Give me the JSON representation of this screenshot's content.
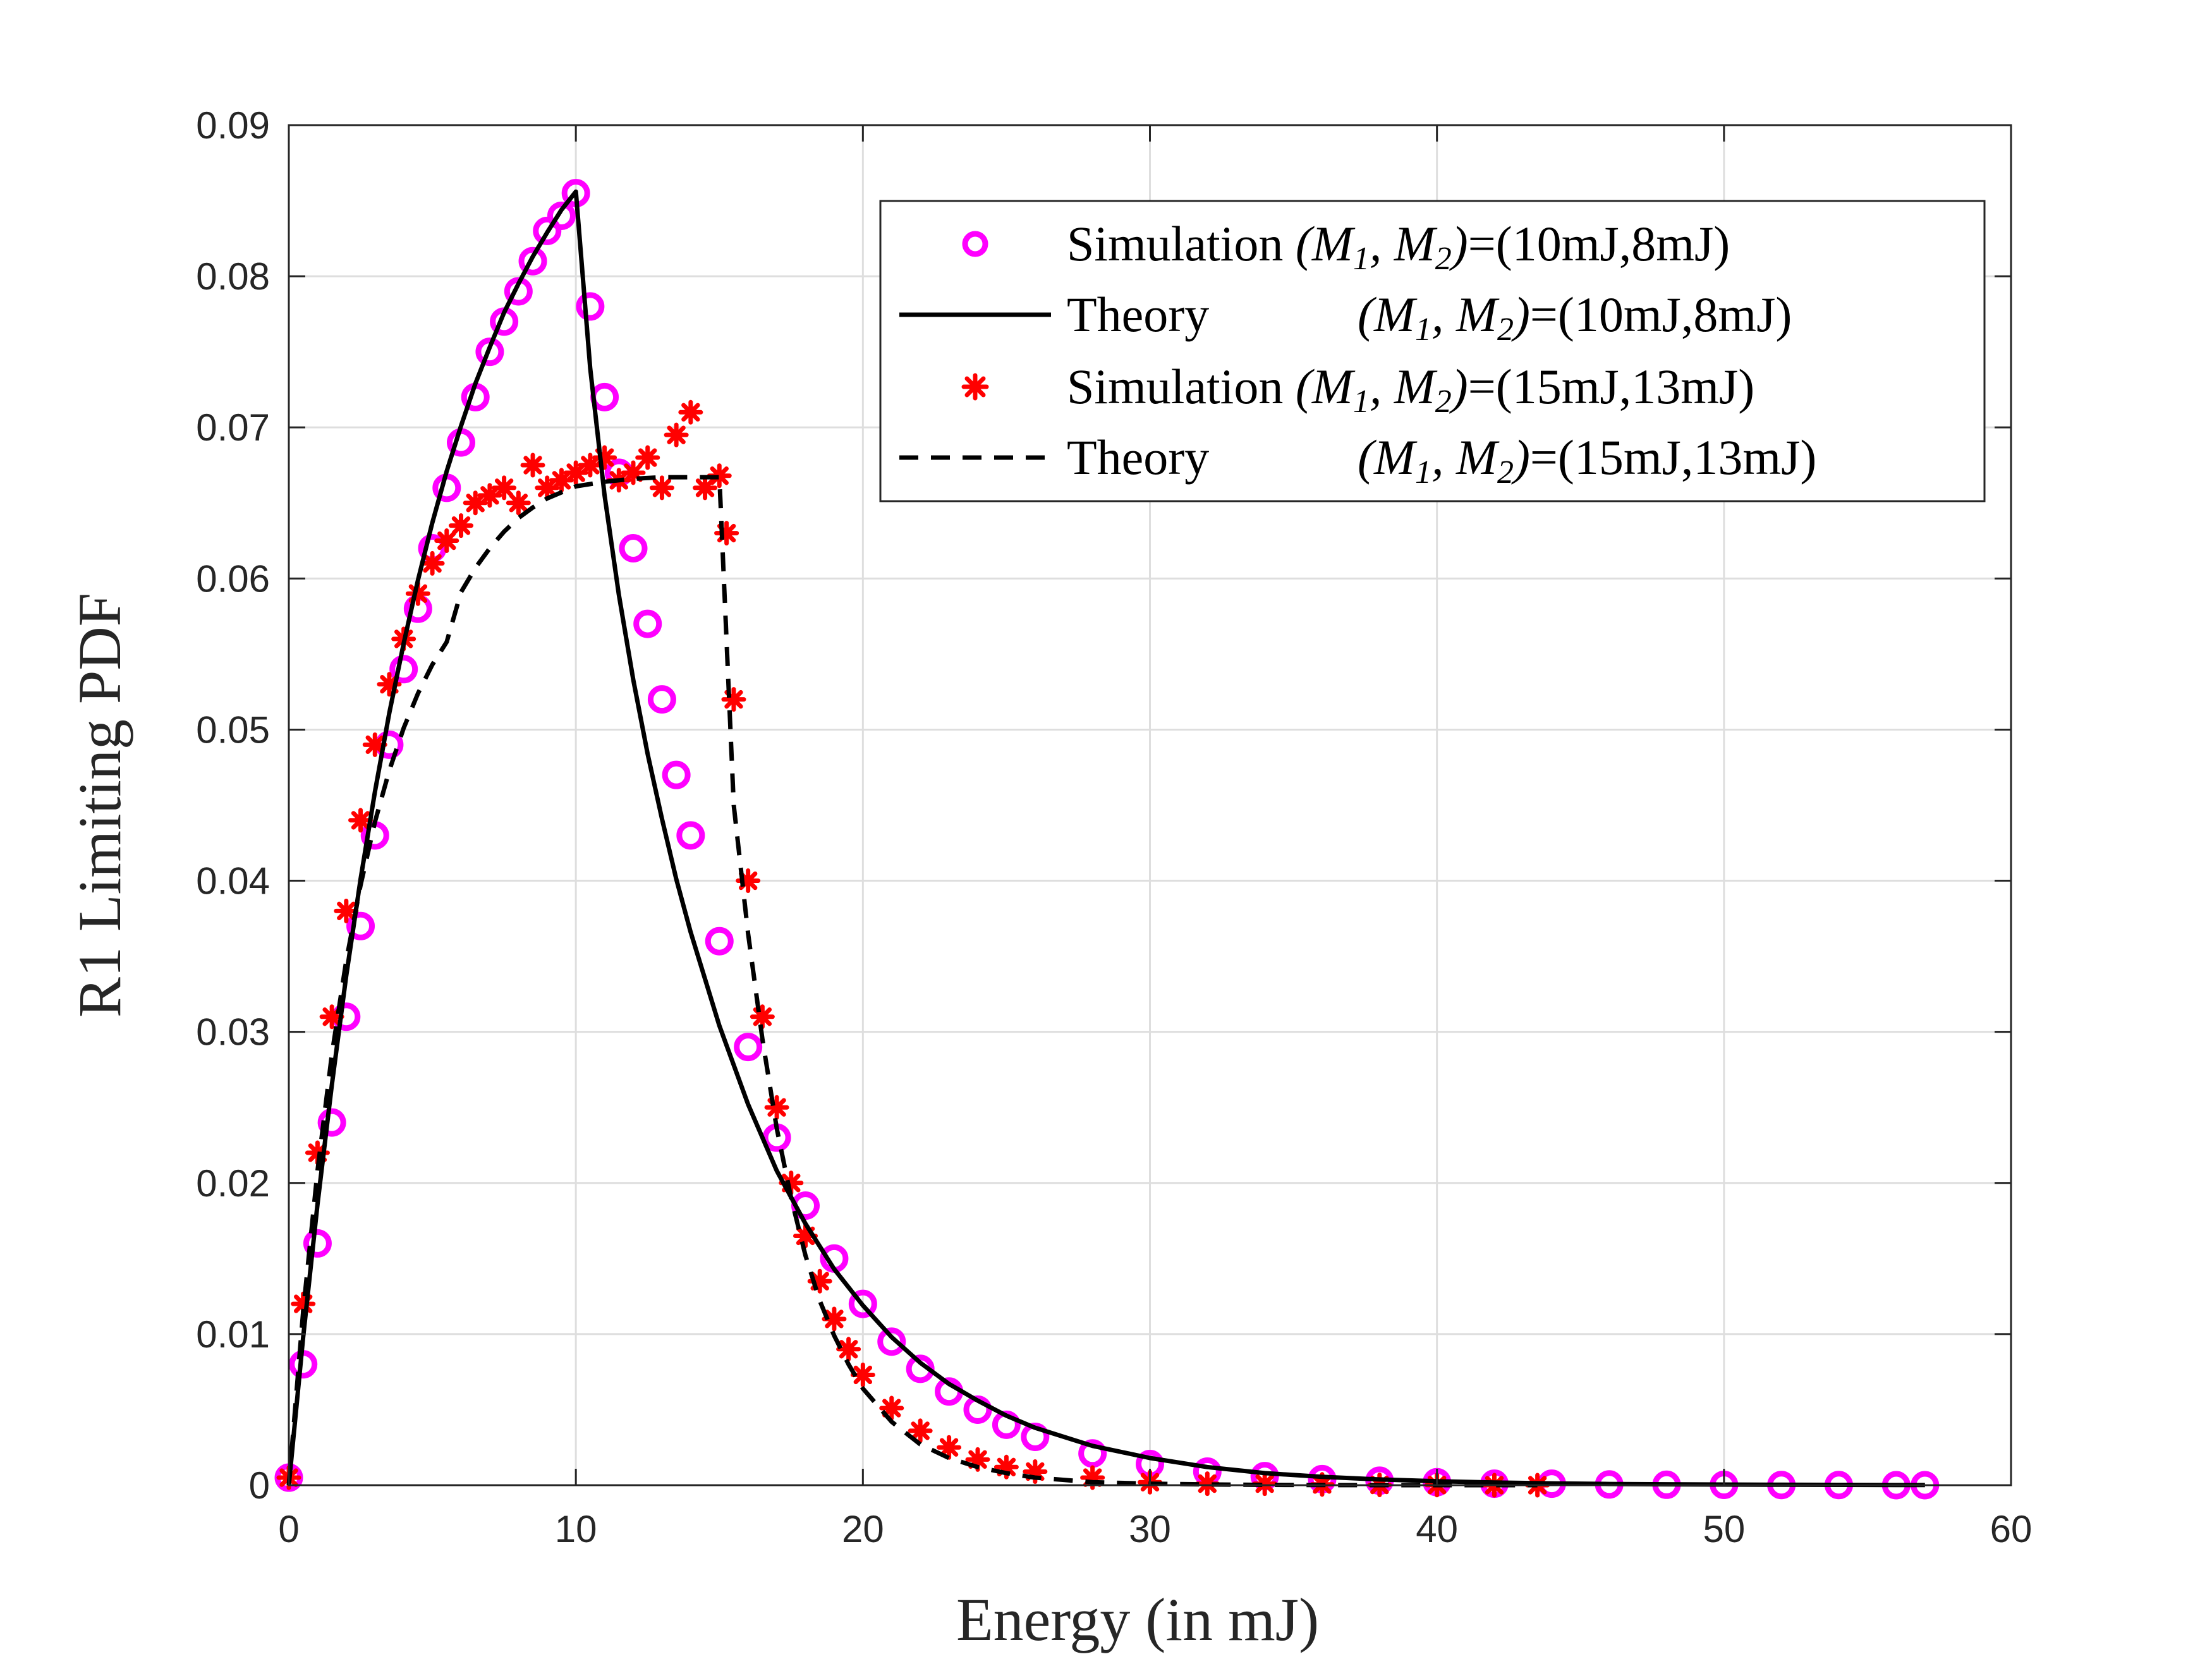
{
  "chart_data": {
    "type": "line",
    "title": "",
    "xlabel": "Energy   (in mJ)",
    "ylabel": "R1 Limiting PDF",
    "xlim": [
      0,
      60
    ],
    "ylim": [
      0,
      0.09
    ],
    "xticks": [
      0,
      10,
      20,
      30,
      40,
      50,
      60
    ],
    "xtick_labels": [
      "0",
      "10",
      "20",
      "30",
      "40",
      "50",
      "60"
    ],
    "yticks": [
      0,
      0.01,
      0.02,
      0.03,
      0.04,
      0.05,
      0.06,
      0.07,
      0.08,
      0.09
    ],
    "ytick_labels": [
      "0",
      "0.01",
      "0.02",
      "0.03",
      "0.04",
      "0.05",
      "0.06",
      "0.07",
      "0.08",
      "0.09"
    ],
    "grid": true,
    "legend_position": "top-right",
    "series": [
      {
        "name": "Simulation (M1, M2)=(10mJ,8mJ)",
        "legend_prefix": "Simulation ",
        "legend_params": "=(10mJ,8mJ)",
        "style": "markers-circle",
        "color": "#ff00ff",
        "x": [
          0,
          0.5,
          1,
          1.5,
          2,
          2.5,
          3,
          3.5,
          4,
          4.5,
          5,
          5.5,
          6,
          6.5,
          7,
          7.5,
          8,
          8.5,
          9,
          9.5,
          10,
          10.5,
          11,
          11.5,
          12,
          12.5,
          13,
          13.5,
          14,
          15,
          16,
          17,
          18,
          19,
          20,
          21,
          22,
          23,
          24,
          25,
          26,
          28,
          30,
          32,
          34,
          36,
          38,
          40,
          42,
          44,
          46,
          48,
          50,
          52,
          54,
          56,
          57
        ],
        "y": [
          0.0005,
          0.008,
          0.016,
          0.024,
          0.031,
          0.037,
          0.043,
          0.049,
          0.054,
          0.058,
          0.062,
          0.066,
          0.069,
          0.072,
          0.075,
          0.077,
          0.079,
          0.081,
          0.083,
          0.084,
          0.0855,
          0.078,
          0.072,
          0.067,
          0.062,
          0.057,
          0.052,
          0.047,
          0.043,
          0.036,
          0.029,
          0.023,
          0.0185,
          0.015,
          0.012,
          0.0095,
          0.0077,
          0.0062,
          0.005,
          0.004,
          0.0032,
          0.0021,
          0.0014,
          0.0009,
          0.0006,
          0.0004,
          0.0003,
          0.0002,
          0.0001,
          0.0001,
          5e-05,
          3e-05,
          2e-05,
          1e-05,
          1e-05,
          0.0,
          0.0
        ]
      },
      {
        "name": "Theory (M1, M2)=(10mJ,8mJ)",
        "legend_prefix": "Theory",
        "legend_params": "=(10mJ,8mJ)",
        "style": "solid",
        "color": "#000000",
        "x": [
          0,
          0.5,
          1,
          1.5,
          2,
          2.5,
          3,
          3.5,
          4,
          4.5,
          5,
          5.5,
          6,
          6.5,
          7,
          7.5,
          8,
          8.5,
          9,
          9.5,
          10,
          10.5,
          11,
          11.5,
          12,
          12.5,
          13,
          13.5,
          14,
          15,
          16,
          17,
          18,
          19,
          20,
          21,
          22,
          23,
          24,
          25,
          26,
          28,
          30,
          32,
          34,
          36,
          38,
          40,
          42,
          44,
          46,
          48,
          50,
          52,
          54,
          56,
          57
        ],
        "y": [
          0.0,
          0.0098,
          0.0186,
          0.0265,
          0.0337,
          0.0401,
          0.0459,
          0.0511,
          0.0557,
          0.0599,
          0.0637,
          0.0671,
          0.0701,
          0.0729,
          0.0753,
          0.0776,
          0.0795,
          0.0813,
          0.0829,
          0.0844,
          0.0856,
          0.0739,
          0.0655,
          0.0589,
          0.0533,
          0.0484,
          0.0441,
          0.0401,
          0.0366,
          0.0304,
          0.0252,
          0.0208,
          0.0173,
          0.0143,
          0.0119,
          0.0098,
          0.0081,
          0.0067,
          0.0056,
          0.0046,
          0.0038,
          0.0026,
          0.0018,
          0.0012,
          0.0008,
          0.00055,
          0.00038,
          0.00026,
          0.00018,
          0.00012,
          8e-05,
          6e-05,
          4e-05,
          3e-05,
          2e-05,
          1e-05,
          1e-05
        ]
      },
      {
        "name": "Simulation (M1, M2)=(15mJ,13mJ)",
        "legend_prefix": "Simulation ",
        "legend_params": "=(15mJ,13mJ)",
        "style": "markers-star",
        "color": "#ff0000",
        "x": [
          0,
          0.5,
          1,
          1.5,
          2,
          2.5,
          3,
          3.5,
          4,
          4.5,
          5,
          5.5,
          6,
          6.5,
          7,
          7.5,
          8,
          8.5,
          9,
          9.5,
          10,
          10.5,
          11,
          11.5,
          12,
          12.5,
          13,
          13.5,
          14,
          14.5,
          15,
          15.25,
          15.5,
          16,
          16.5,
          17,
          17.5,
          18,
          18.5,
          19,
          19.5,
          20,
          21,
          22,
          23,
          24,
          25,
          26,
          28,
          30,
          32,
          34,
          36,
          38,
          40,
          42,
          43.5
        ],
        "y": [
          0.0005,
          0.012,
          0.022,
          0.031,
          0.038,
          0.044,
          0.049,
          0.053,
          0.056,
          0.059,
          0.061,
          0.0625,
          0.0635,
          0.065,
          0.0655,
          0.066,
          0.065,
          0.0675,
          0.066,
          0.0665,
          0.067,
          0.0675,
          0.068,
          0.0665,
          0.067,
          0.068,
          0.066,
          0.0695,
          0.071,
          0.066,
          0.0668,
          0.063,
          0.052,
          0.04,
          0.031,
          0.025,
          0.02,
          0.0165,
          0.0135,
          0.011,
          0.009,
          0.0073,
          0.0051,
          0.0036,
          0.0025,
          0.0017,
          0.0012,
          0.0009,
          0.0005,
          0.0002,
          0.0001,
          0.0001,
          5e-05,
          2e-05,
          1e-05,
          0.0,
          0.0
        ]
      },
      {
        "name": "Theory (M1, M2)=(15mJ,13mJ)",
        "legend_prefix": "Theory",
        "legend_params": "=(15mJ,13mJ)",
        "style": "dashed",
        "color": "#000000",
        "x": [
          0,
          0.5,
          1,
          1.5,
          2,
          2.5,
          3,
          3.5,
          4,
          4.5,
          5,
          5.5,
          6,
          6.5,
          7,
          7.5,
          8,
          8.5,
          9,
          9.5,
          10,
          11,
          12,
          13,
          14,
          15,
          15.5,
          16,
          16.5,
          17,
          17.5,
          18,
          18.5,
          19,
          19.5,
          20,
          21,
          22,
          23,
          24,
          25,
          26,
          28,
          30,
          32,
          34,
          36,
          38,
          40,
          42,
          43.5
        ],
        "y": [
          0.0,
          0.0115,
          0.0208,
          0.0285,
          0.0347,
          0.0397,
          0.0439,
          0.0473,
          0.0501,
          0.0524,
          0.0543,
          0.0558,
          0.0591,
          0.0607,
          0.062,
          0.0631,
          0.064,
          0.0647,
          0.0653,
          0.0657,
          0.0661,
          0.0664,
          0.0666,
          0.0667,
          0.0667,
          0.0667,
          0.045,
          0.0365,
          0.0295,
          0.0236,
          0.019,
          0.0152,
          0.0122,
          0.0099,
          0.008,
          0.0064,
          0.0042,
          0.0027,
          0.0018,
          0.0012,
          0.0008,
          0.0005,
          0.0002,
          0.0001,
          5e-05,
          2e-05,
          1e-05,
          0.0,
          0.0,
          0.0,
          0.0
        ]
      }
    ]
  },
  "legend": {
    "math_left": "(M",
    "sub1": "1",
    "comma": ", M",
    "sub2": "2",
    "math_right": ")"
  }
}
